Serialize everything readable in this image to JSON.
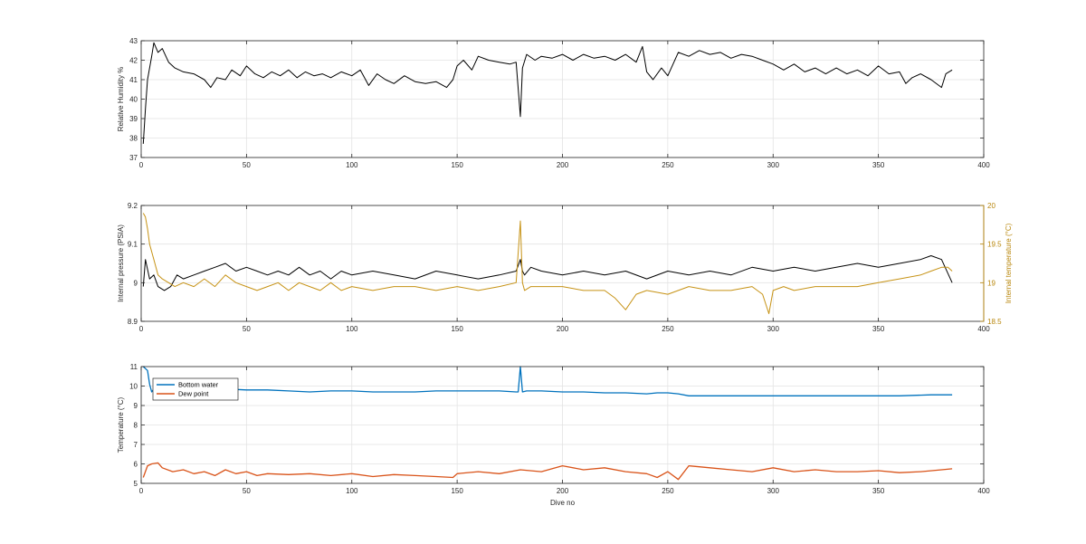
{
  "chart_data": [
    {
      "type": "line",
      "xlabel": "",
      "ylabel": "Relative Humidity %",
      "xlim": [
        0,
        400
      ],
      "ylim": [
        37,
        43
      ],
      "xticks": [
        0,
        50,
        100,
        150,
        200,
        250,
        300,
        350,
        400
      ],
      "yticks": [
        37,
        38,
        39,
        40,
        41,
        42,
        43
      ],
      "grid": true,
      "series": [
        {
          "color": "#000000",
          "x": [
            1,
            2,
            3,
            5,
            6,
            8,
            10,
            13,
            16,
            20,
            25,
            30,
            33,
            36,
            40,
            43,
            47,
            50,
            54,
            58,
            62,
            66,
            70,
            74,
            78,
            82,
            86,
            90,
            95,
            100,
            104,
            108,
            112,
            116,
            120,
            125,
            130,
            135,
            140,
            145,
            148,
            150,
            153,
            157,
            160,
            165,
            170,
            175,
            178,
            180,
            181,
            183,
            187,
            190,
            195,
            200,
            205,
            210,
            215,
            220,
            225,
            230,
            235,
            238,
            240,
            243,
            247,
            250,
            255,
            260,
            265,
            270,
            275,
            280,
            285,
            290,
            295,
            300,
            305,
            310,
            315,
            320,
            325,
            330,
            335,
            340,
            345,
            350,
            355,
            360,
            363,
            366,
            370,
            375,
            380,
            382,
            385
          ],
          "values": [
            37.7,
            39.5,
            41.0,
            42.2,
            42.9,
            42.4,
            42.6,
            41.9,
            41.6,
            41.4,
            41.3,
            41.0,
            40.6,
            41.1,
            41.0,
            41.5,
            41.2,
            41.7,
            41.3,
            41.1,
            41.4,
            41.2,
            41.5,
            41.1,
            41.4,
            41.2,
            41.3,
            41.1,
            41.4,
            41.2,
            41.5,
            40.7,
            41.3,
            41.0,
            40.8,
            41.2,
            40.9,
            40.8,
            40.9,
            40.6,
            41.0,
            41.7,
            42.0,
            41.5,
            42.2,
            42.0,
            41.9,
            41.8,
            41.9,
            39.1,
            41.6,
            42.3,
            42.0,
            42.2,
            42.1,
            42.3,
            42.0,
            42.3,
            42.1,
            42.2,
            42.0,
            42.3,
            41.9,
            42.7,
            41.4,
            41.0,
            41.6,
            41.2,
            42.4,
            42.2,
            42.5,
            42.3,
            42.4,
            42.1,
            42.3,
            42.2,
            42.0,
            41.8,
            41.5,
            41.8,
            41.4,
            41.6,
            41.3,
            41.6,
            41.3,
            41.5,
            41.2,
            41.7,
            41.3,
            41.4,
            40.8,
            41.1,
            41.3,
            41.0,
            40.6,
            41.3,
            41.5
          ]
        }
      ]
    },
    {
      "type": "line",
      "xlabel": "",
      "ylabel": "Internal pressure (PSIA)",
      "ylabel_right": "Internal temperature (°C)",
      "xlim": [
        0,
        400
      ],
      "ylim": [
        8.9,
        9.2
      ],
      "ylim_right": [
        18.5,
        20
      ],
      "xticks": [
        0,
        50,
        100,
        150,
        200,
        250,
        300,
        350,
        400
      ],
      "yticks": [
        8.9,
        9.0,
        9.1,
        9.2
      ],
      "yticks_right": [
        18.5,
        19,
        19.5,
        20
      ],
      "grid": true,
      "series": [
        {
          "axis": "left",
          "color": "#000000",
          "x": [
            1,
            2,
            4,
            6,
            8,
            11,
            14,
            17,
            20,
            25,
            30,
            35,
            40,
            45,
            50,
            55,
            60,
            65,
            70,
            75,
            80,
            85,
            90,
            95,
            100,
            110,
            120,
            130,
            140,
            150,
            160,
            170,
            178,
            180,
            181,
            182,
            185,
            190,
            200,
            210,
            220,
            230,
            240,
            250,
            260,
            270,
            280,
            290,
            300,
            310,
            320,
            330,
            340,
            350,
            360,
            370,
            375,
            380,
            385
          ],
          "values": [
            8.99,
            9.06,
            9.01,
            9.02,
            8.99,
            8.98,
            8.99,
            9.02,
            9.01,
            9.02,
            9.03,
            9.04,
            9.05,
            9.03,
            9.04,
            9.03,
            9.02,
            9.03,
            9.02,
            9.04,
            9.02,
            9.03,
            9.01,
            9.03,
            9.02,
            9.03,
            9.02,
            9.01,
            9.03,
            9.02,
            9.01,
            9.02,
            9.03,
            9.06,
            9.03,
            9.02,
            9.04,
            9.03,
            9.02,
            9.03,
            9.02,
            9.03,
            9.01,
            9.03,
            9.02,
            9.03,
            9.02,
            9.04,
            9.03,
            9.04,
            9.03,
            9.04,
            9.05,
            9.04,
            9.05,
            9.06,
            9.07,
            9.06,
            9.0
          ]
        },
        {
          "axis": "right",
          "color": "#c69214",
          "x": [
            1,
            2,
            3,
            4,
            6,
            8,
            10,
            13,
            16,
            20,
            25,
            30,
            35,
            40,
            45,
            50,
            55,
            60,
            65,
            70,
            75,
            80,
            85,
            90,
            95,
            100,
            110,
            120,
            130,
            140,
            150,
            160,
            170,
            178,
            180,
            181,
            182,
            185,
            190,
            200,
            210,
            220,
            225,
            230,
            235,
            240,
            250,
            260,
            270,
            280,
            290,
            295,
            298,
            300,
            305,
            310,
            320,
            330,
            340,
            350,
            360,
            370,
            375,
            380,
            383,
            385
          ],
          "values": [
            19.9,
            19.85,
            19.7,
            19.5,
            19.3,
            19.1,
            19.05,
            19.0,
            18.95,
            19.0,
            18.95,
            19.05,
            18.95,
            19.1,
            19.0,
            18.95,
            18.9,
            18.95,
            19.0,
            18.9,
            19.0,
            18.95,
            18.9,
            19.0,
            18.9,
            18.95,
            18.9,
            18.95,
            18.95,
            18.9,
            18.95,
            18.9,
            18.95,
            19.0,
            19.8,
            19.0,
            18.9,
            18.95,
            18.95,
            18.95,
            18.9,
            18.9,
            18.8,
            18.65,
            18.85,
            18.9,
            18.85,
            18.95,
            18.9,
            18.9,
            18.95,
            18.85,
            18.6,
            18.9,
            18.95,
            18.9,
            18.95,
            18.95,
            18.95,
            19.0,
            19.05,
            19.1,
            19.15,
            19.2,
            19.2,
            19.15
          ]
        }
      ]
    },
    {
      "type": "line",
      "xlabel": "Dive no",
      "ylabel": "Temperature (°C)",
      "xlim": [
        0,
        400
      ],
      "ylim": [
        5,
        11
      ],
      "xticks": [
        0,
        50,
        100,
        150,
        200,
        250,
        300,
        350,
        400
      ],
      "yticks": [
        5,
        6,
        7,
        8,
        9,
        10,
        11
      ],
      "grid": true,
      "legend": "top-left",
      "series": [
        {
          "name": "Bottom water",
          "color": "#0072bd",
          "x": [
            1,
            3,
            4,
            5,
            6,
            8,
            10,
            15,
            20,
            30,
            40,
            50,
            60,
            70,
            80,
            90,
            100,
            110,
            120,
            130,
            140,
            150,
            160,
            170,
            178,
            179,
            180,
            181,
            183,
            190,
            200,
            210,
            220,
            230,
            240,
            245,
            250,
            255,
            260,
            270,
            280,
            290,
            300,
            320,
            340,
            360,
            375,
            385
          ],
          "values": [
            11.0,
            10.8,
            10.1,
            9.7,
            9.85,
            9.9,
            9.85,
            9.8,
            9.85,
            9.8,
            9.85,
            9.8,
            9.8,
            9.75,
            9.7,
            9.75,
            9.75,
            9.7,
            9.7,
            9.7,
            9.75,
            9.75,
            9.75,
            9.75,
            9.7,
            9.7,
            11.0,
            9.7,
            9.75,
            9.75,
            9.7,
            9.7,
            9.65,
            9.65,
            9.6,
            9.65,
            9.65,
            9.6,
            9.5,
            9.5,
            9.5,
            9.5,
            9.5,
            9.5,
            9.5,
            9.5,
            9.55,
            9.55
          ]
        },
        {
          "name": "Dew point",
          "color": "#d95319",
          "x": [
            1,
            3,
            5,
            8,
            10,
            15,
            20,
            25,
            30,
            35,
            40,
            45,
            50,
            55,
            60,
            70,
            80,
            90,
            100,
            110,
            120,
            130,
            140,
            148,
            150,
            160,
            170,
            180,
            190,
            200,
            210,
            220,
            230,
            240,
            245,
            250,
            255,
            260,
            270,
            280,
            290,
            300,
            310,
            320,
            330,
            340,
            350,
            360,
            370,
            380,
            385
          ],
          "values": [
            5.3,
            5.9,
            6.0,
            6.05,
            5.8,
            5.6,
            5.7,
            5.5,
            5.6,
            5.4,
            5.7,
            5.5,
            5.6,
            5.4,
            5.5,
            5.45,
            5.5,
            5.4,
            5.5,
            5.35,
            5.45,
            5.4,
            5.35,
            5.3,
            5.5,
            5.6,
            5.5,
            5.7,
            5.6,
            5.9,
            5.7,
            5.8,
            5.6,
            5.5,
            5.3,
            5.6,
            5.2,
            5.9,
            5.8,
            5.7,
            5.6,
            5.8,
            5.6,
            5.7,
            5.6,
            5.6,
            5.65,
            5.55,
            5.6,
            5.7,
            5.75
          ]
        }
      ]
    }
  ]
}
